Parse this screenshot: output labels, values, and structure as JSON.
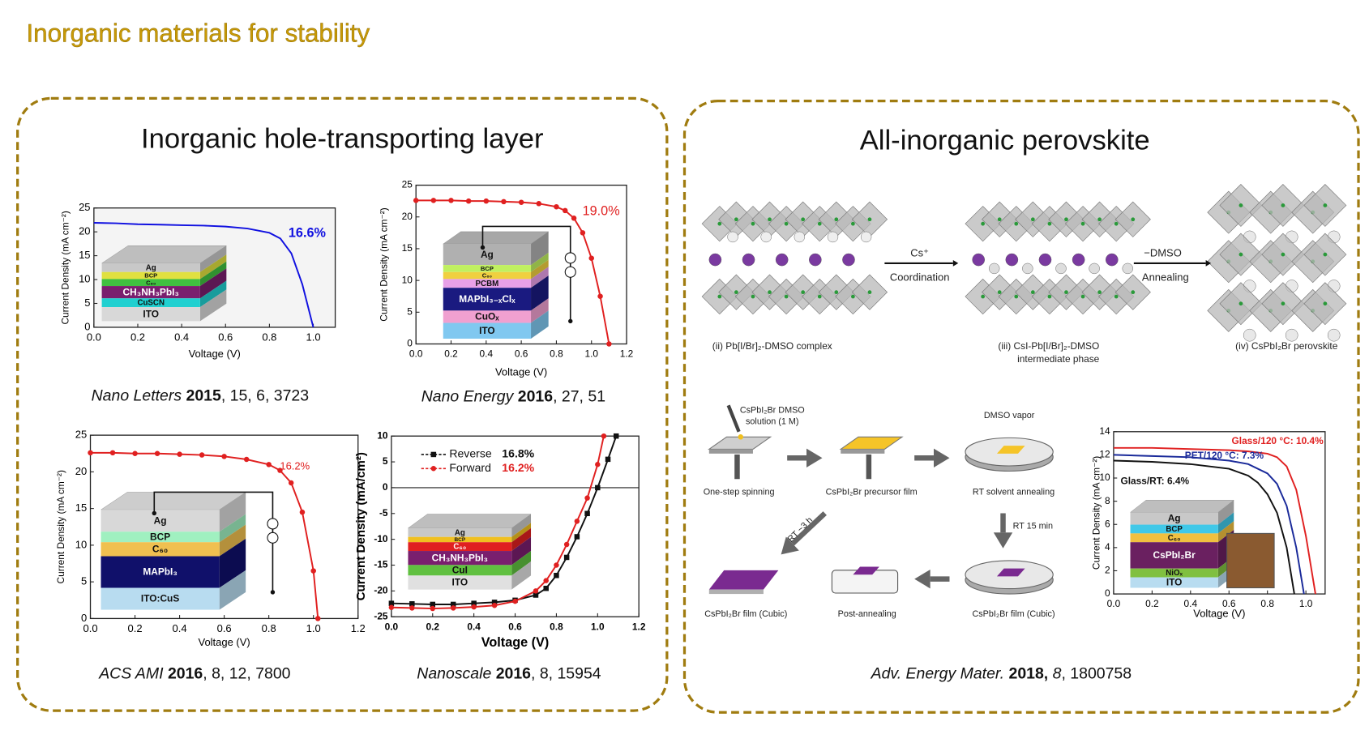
{
  "title": "Inorganic materials for stability",
  "panels": [
    {
      "title": "Inorganic hole-transporting layer"
    },
    {
      "title": "All-inorganic perovskite"
    }
  ],
  "plots": [
    {
      "xlabel": "Voltage (V)",
      "ylabel": "Current Density (mA cm⁻²)",
      "xlim": [
        0,
        1.1
      ],
      "ylim": [
        0,
        25
      ],
      "xticks": [
        {
          "value": 0,
          "label": "0.0"
        },
        0.2,
        0.4,
        0.6,
        0.8,
        {
          "value": 1,
          "label": "1.0"
        }
      ],
      "yticks": [
        0,
        5,
        10,
        15,
        20,
        25
      ],
      "series": [
        {
          "color": "#1010e0",
          "x": [
            0,
            0.1,
            0.2,
            0.3,
            0.4,
            0.5,
            0.6,
            0.7,
            0.8,
            0.85,
            0.9,
            0.95,
            1.0
          ],
          "values": [
            21.9,
            21.8,
            21.6,
            21.5,
            21.4,
            21.3,
            21.1,
            20.7,
            19.8,
            18.6,
            15.5,
            9,
            0
          ]
        }
      ],
      "annotations": [
        {
          "text": "16.6%",
          "color": "#1010e0"
        }
      ],
      "layers": [
        {
          "name": "Ag",
          "color": "#c8c8c8"
        },
        {
          "name": "BCP",
          "color": "#e0e040"
        },
        {
          "name": "C₆₀",
          "color": "#40c040"
        },
        {
          "name": "CH₃NH₃PbI₃",
          "color": "#7a1f6e"
        },
        {
          "name": "CuSCN",
          "color": "#20d0d0"
        },
        {
          "name": "ITO",
          "color": "#d8d8d8"
        }
      ],
      "citation": [
        {
          "text": "Nano Letters",
          "style": "italic"
        },
        {
          "text": "  2015",
          "style": "bold"
        },
        {
          "text": ", 15, 6, 3723",
          "style": "normal"
        }
      ]
    },
    {
      "xlabel": "Voltage (V)",
      "ylabel": "Current Density (mA cm⁻²)",
      "xlim": [
        0,
        1.2
      ],
      "ylim": [
        0,
        25
      ],
      "xticks": [
        {
          "value": 0,
          "label": "0.0"
        },
        0.2,
        0.4,
        0.6,
        0.8,
        {
          "value": 1,
          "label": "1.0"
        },
        1.2
      ],
      "yticks": [
        0,
        5,
        10,
        15,
        20,
        25
      ],
      "series": [
        {
          "color": "#e02020",
          "marker": "circle",
          "x": [
            0,
            0.1,
            0.2,
            0.3,
            0.4,
            0.5,
            0.6,
            0.7,
            0.8,
            0.85,
            0.9,
            0.95,
            1.0,
            1.05,
            1.1
          ],
          "values": [
            22.6,
            22.6,
            22.6,
            22.5,
            22.5,
            22.4,
            22.3,
            22.1,
            21.6,
            21,
            19.8,
            17.5,
            13.5,
            7.5,
            0
          ]
        }
      ],
      "annotations": [
        {
          "text": "19.0%",
          "color": "#e02020"
        }
      ],
      "layers": [
        {
          "name": "Ag",
          "color": "#b0b0b0"
        },
        {
          "name": "BCP",
          "color": "#c0f060"
        },
        {
          "name": "C₆₀",
          "color": "#f0d040"
        },
        {
          "name": "PCBM",
          "color": "#e8a0e8"
        },
        {
          "name": "MAPbI₃₋ₓClₓ",
          "color": "#1a1a80"
        },
        {
          "name": "CuOₓ",
          "color": "#f0a0d0"
        },
        {
          "name": "ITO",
          "color": "#80c8f0"
        }
      ],
      "citation": [
        {
          "text": "Nano Energy",
          "style": "italic"
        },
        {
          "text": " 2016",
          "style": "bold"
        },
        {
          "text": ", 27, 51",
          "style": "normal"
        }
      ]
    },
    {
      "xlabel": "Voltage (V)",
      "ylabel": "Current Density (mA cm⁻²)",
      "xlim": [
        0,
        1.2
      ],
      "ylim": [
        0,
        25
      ],
      "xticks": [
        {
          "value": 0,
          "label": "0.0"
        },
        0.2,
        0.4,
        0.6,
        0.8,
        {
          "value": 1,
          "label": "1.0"
        },
        1.2
      ],
      "yticks": [
        0,
        5,
        10,
        15,
        20,
        25
      ],
      "series": [
        {
          "color": "#e02020",
          "marker": "circle",
          "x": [
            0,
            0.1,
            0.2,
            0.3,
            0.4,
            0.5,
            0.6,
            0.7,
            0.8,
            0.85,
            0.9,
            0.95,
            1.0,
            1.02
          ],
          "values": [
            22.6,
            22.6,
            22.5,
            22.5,
            22.4,
            22.3,
            22.1,
            21.7,
            21.0,
            20.2,
            18.5,
            14.5,
            6.5,
            0
          ]
        }
      ],
      "annotations": [
        {
          "text": "16.2%",
          "color": "#e02020"
        }
      ],
      "layers": [
        {
          "name": "Ag",
          "color": "#d8d8d8"
        },
        {
          "name": "BCP",
          "color": "#a0f0c0"
        },
        {
          "name": "C₆₀",
          "color": "#f0c050"
        },
        {
          "name": "MAPbI₃",
          "color": "#10106a"
        },
        {
          "name": "ITO:CuS",
          "color": "#b8dcf0"
        }
      ],
      "citation": [
        {
          "text": "ACS AMI",
          "style": "italic"
        },
        {
          "text": " 2016",
          "style": "bold"
        },
        {
          "text": ", 8, 12, 7800",
          "style": "normal"
        }
      ]
    },
    {
      "xlabel": "Voltage (V)",
      "ylabel": "Current Density (mA/cm²)",
      "xlim": [
        0,
        1.2
      ],
      "ylim": [
        -25,
        10
      ],
      "xticks": [
        {
          "value": 0,
          "label": "0.0"
        },
        0.2,
        0.4,
        0.6,
        0.8,
        {
          "value": 1,
          "label": "1.0"
        },
        1.2
      ],
      "yticks": [
        -25,
        -20,
        -15,
        -10,
        -5,
        0,
        5,
        10
      ],
      "series": [
        {
          "name": "Reverse",
          "color": "#111111",
          "marker": "square",
          "x": [
            0,
            0.1,
            0.2,
            0.3,
            0.4,
            0.5,
            0.6,
            0.7,
            0.75,
            0.8,
            0.85,
            0.9,
            0.95,
            1.0,
            1.05,
            1.09
          ],
          "values": [
            -22.4,
            -22.5,
            -22.6,
            -22.6,
            -22.4,
            -22.2,
            -21.8,
            -20.8,
            -19.5,
            -17,
            -13.5,
            -9.5,
            -5,
            0,
            5.5,
            10
          ]
        },
        {
          "name": "Forward",
          "color": "#e02020",
          "marker": "circle",
          "x": [
            0,
            0.1,
            0.2,
            0.3,
            0.4,
            0.5,
            0.6,
            0.7,
            0.75,
            0.8,
            0.85,
            0.9,
            0.95,
            1.0,
            1.03
          ],
          "values": [
            -23.2,
            -23.3,
            -23.4,
            -23.3,
            -23.1,
            -22.8,
            -22,
            -20,
            -18,
            -15,
            -11,
            -6.5,
            -2,
            4.5,
            10
          ]
        }
      ],
      "annotations": [
        {
          "text": "16.8%",
          "color": "#111111"
        },
        {
          "text": "16.2%",
          "color": "#e02020"
        }
      ],
      "layers": [
        {
          "name": "Ag",
          "color": "#c8c8c8"
        },
        {
          "name": "BCP",
          "color": "#f0c020"
        },
        {
          "name": "C₆₀",
          "color": "#e02020"
        },
        {
          "name": "CH₃NH₃PbI₃",
          "color": "#7a1f6e"
        },
        {
          "name": "CuI",
          "color": "#60c040"
        },
        {
          "name": "ITO",
          "color": "#e0e0e0"
        }
      ],
      "citation": [
        {
          "text": "Nanoscale",
          "style": "italic"
        },
        {
          "text": " 2016",
          "style": "bold"
        },
        {
          "text": ", 8, 15954",
          "style": "normal"
        }
      ]
    },
    {
      "xlabel": "Voltage (V)",
      "ylabel": "Current Density (mA cm⁻²)",
      "xlim": [
        0,
        1.1
      ],
      "ylim": [
        0,
        14
      ],
      "xticks": [
        {
          "value": 0,
          "label": "0.0"
        },
        0.2,
        0.4,
        0.6,
        0.8,
        {
          "value": 1,
          "label": "1.0"
        }
      ],
      "yticks": [
        0,
        2,
        4,
        6,
        8,
        10,
        12,
        14
      ],
      "series": [
        {
          "name": "Glass/120 °C: 10.4%",
          "color": "#e02020",
          "x": [
            0,
            0.2,
            0.4,
            0.6,
            0.7,
            0.8,
            0.85,
            0.9,
            0.95,
            1.0,
            1.05
          ],
          "values": [
            12.6,
            12.6,
            12.5,
            12.4,
            12.3,
            12.1,
            11.8,
            11.0,
            9.0,
            5,
            0
          ]
        },
        {
          "name": "PET/120 °C: 7.3%",
          "color": "#1a2a9a",
          "x": [
            0,
            0.2,
            0.4,
            0.6,
            0.7,
            0.8,
            0.85,
            0.9,
            0.95,
            0.99
          ],
          "values": [
            12.0,
            11.9,
            11.8,
            11.5,
            11.2,
            10.4,
            9.5,
            7.6,
            4,
            0
          ]
        },
        {
          "name": "Glass/RT: 6.4%",
          "color": "#111111",
          "x": [
            0,
            0.2,
            0.4,
            0.6,
            0.7,
            0.75,
            0.8,
            0.85,
            0.9,
            0.94
          ],
          "values": [
            11.5,
            11.4,
            11.2,
            10.8,
            10.2,
            9.6,
            8.6,
            7,
            4,
            0
          ]
        }
      ],
      "annotations": [],
      "layers": [
        {
          "name": "Ag",
          "color": "#c8c8c8"
        },
        {
          "name": "BCP",
          "color": "#40c8e8"
        },
        {
          "name": "C₆₀",
          "color": "#f0c040"
        },
        {
          "name": "CsPbI₂Br",
          "color": "#6a2060"
        },
        {
          "name": "NiOₓ",
          "color": "#80c040"
        },
        {
          "name": "ITO",
          "color": "#b8dcf0"
        }
      ],
      "citation": [
        {
          "text": "Adv. Energy Mater.",
          "style": "italic"
        },
        {
          "text": " 2018,",
          "style": "bold"
        },
        {
          "text": " 8",
          "style": "italic"
        },
        {
          "text": ", 1800758",
          "style": "normal"
        }
      ]
    }
  ],
  "crystal": {
    "labels": [
      "(ii) Pb[I/Br]₂-DMSO complex",
      "(iii) CsI-Pb[I/Br]₂-DMSO",
      "intermediate phase",
      "(iv) CsPbI₂Br perovskite"
    ],
    "arrows": [
      {
        "above": "Cs⁺",
        "below": "Coordination"
      },
      {
        "above": "−DMSO",
        "below": "Annealing"
      }
    ]
  },
  "process": {
    "labels": [
      "CsPbI₂Br DMSO",
      "solution (1 M)",
      "One-step spinning",
      "CsPbI₂Br precursor film",
      "DMSO vapor",
      "RT  solvent annealing",
      "RT 15 min",
      "CsPbI₂Br film (Cubic)",
      "Post-annealing",
      "CsPbI₂Br film (Cubic)",
      "RT ~3 h"
    ]
  }
}
